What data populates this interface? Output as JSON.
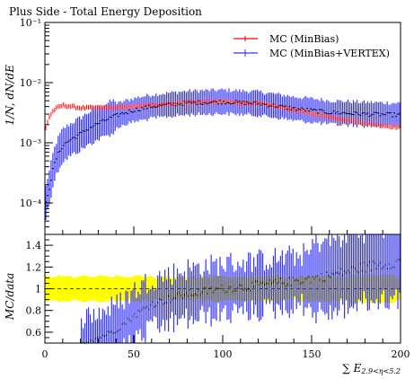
{
  "chart_data": [
    {
      "type": "line",
      "panel": "main",
      "title": "Plus Side - Total Energy Deposition",
      "ylabel": "1/N, dN/dE",
      "xlim": [
        0,
        200
      ],
      "ylim": [
        3e-05,
        0.1
      ],
      "y_scale": "log",
      "y_ticks": [
        0.0001,
        0.001,
        0.01,
        0.1
      ],
      "y_tick_labels": [
        "10⁻⁴",
        "10⁻³",
        "10⁻²",
        "10⁻¹"
      ],
      "legend_position": "top-right",
      "series": [
        {
          "name": "MC (MinBias)",
          "color": "#ff0000",
          "anchors_x": [
            0,
            2,
            5,
            10,
            20,
            40,
            60,
            80,
            100,
            120,
            140,
            160,
            180,
            200
          ],
          "anchors_y": [
            0.0015,
            0.0025,
            0.0035,
            0.0042,
            0.0038,
            0.0038,
            0.0042,
            0.0047,
            0.0048,
            0.0045,
            0.0035,
            0.0027,
            0.0021,
            0.0018
          ]
        },
        {
          "name": "MC (MinBias+VERTEX)",
          "color": "#3333ff",
          "anchors_x": [
            0,
            3,
            6,
            10,
            20,
            30,
            40,
            50,
            60,
            80,
            100,
            120,
            140,
            160,
            180,
            200
          ],
          "anchors_y": [
            8e-05,
            0.0002,
            0.0005,
            0.0009,
            0.0014,
            0.0021,
            0.0028,
            0.0035,
            0.004,
            0.0046,
            0.0048,
            0.0045,
            0.0037,
            0.0032,
            0.003,
            0.0029
          ]
        }
      ]
    },
    {
      "type": "line",
      "panel": "ratio",
      "ylabel": "MC/data",
      "xlabel": "∑ E",
      "xlabel_sub": "2.9<η<5.2",
      "xlim": [
        0,
        200
      ],
      "ylim": [
        0.5,
        1.5
      ],
      "y_ticks": [
        0.6,
        0.8,
        1,
        1.2,
        1.4
      ],
      "y_tick_labels": [
        "0.6",
        "0.8",
        "1",
        "1.2",
        "1.4"
      ],
      "x_ticks": [
        0,
        50,
        100,
        150,
        200
      ],
      "x_tick_labels": [
        "0",
        "50",
        "100",
        "150",
        "200"
      ],
      "band": {
        "color": "#ffff00",
        "anchors_x": [
          0,
          100,
          200
        ],
        "half_width": [
          0.11,
          0.11,
          0.12
        ]
      },
      "series": [
        {
          "name": "MC (MinBias+VERTEX)",
          "color": "#3333ff",
          "anchors_x": [
            20,
            30,
            40,
            50,
            60,
            80,
            100,
            120,
            140,
            160,
            180,
            200
          ],
          "anchors_y": [
            0.5,
            0.55,
            0.62,
            0.75,
            0.86,
            0.95,
            1.0,
            1.03,
            1.07,
            1.12,
            1.2,
            1.25
          ]
        }
      ]
    }
  ]
}
